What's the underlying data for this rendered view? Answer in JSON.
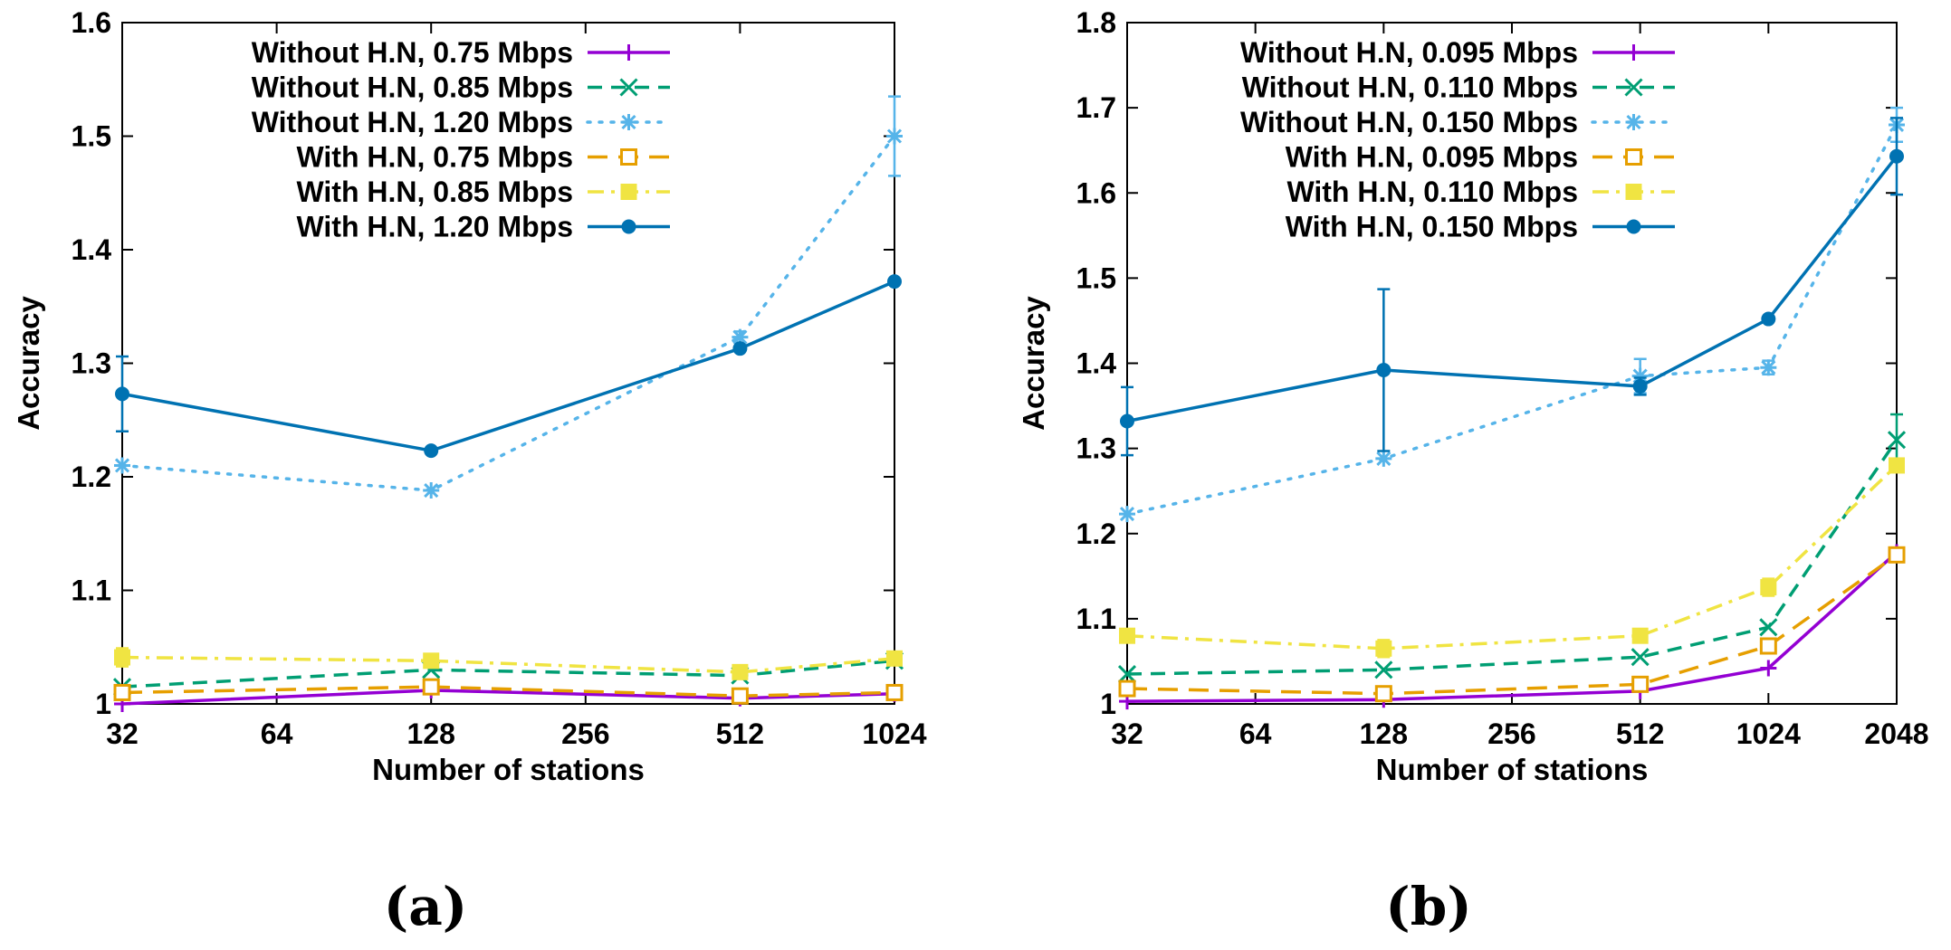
{
  "chart_data": [
    {
      "type": "line",
      "caption": "(a)",
      "xlabel": "Number of stations",
      "ylabel": "Accuracy",
      "xscale": "log2",
      "xlim": [
        32,
        1024
      ],
      "ylim": [
        1.0,
        1.6
      ],
      "xticks": [
        32,
        64,
        128,
        256,
        512,
        1024
      ],
      "xtick_labels": [
        "32",
        "64",
        "128",
        "256",
        "512",
        "1024"
      ],
      "yticks": [
        1.0,
        1.1,
        1.2,
        1.3,
        1.4,
        1.5,
        1.6
      ],
      "ytick_labels": [
        "1",
        "1.1",
        "1.2",
        "1.3",
        "1.4",
        "1.5",
        "1.6"
      ],
      "legend_position": "top-left",
      "series": [
        {
          "name": "Without H.N, 0.75 Mbps",
          "color": "#9400d3",
          "style": "solid",
          "marker": "plus",
          "x": [
            32,
            128,
            512,
            1024
          ],
          "y": [
            1.0,
            1.012,
            1.005,
            1.009
          ],
          "err": [
            0,
            0,
            0,
            0
          ]
        },
        {
          "name": "Without H.N, 0.85 Mbps",
          "color": "#009e73",
          "style": "dashed",
          "marker": "cross",
          "x": [
            32,
            128,
            512,
            1024
          ],
          "y": [
            1.015,
            1.03,
            1.025,
            1.038
          ],
          "err": [
            0,
            0,
            0,
            0
          ]
        },
        {
          "name": "Without H.N, 1.20 Mbps",
          "color": "#56b4e9",
          "style": "dotted",
          "marker": "star",
          "x": [
            32,
            128,
            512,
            1024
          ],
          "y": [
            1.21,
            1.188,
            1.323,
            1.5
          ],
          "err": [
            0,
            0,
            0.005,
            0.035
          ]
        },
        {
          "name": "With H.N, 0.75 Mbps",
          "color": "#e69f00",
          "style": "dashed-long",
          "marker": "square-open",
          "x": [
            32,
            128,
            512,
            1024
          ],
          "y": [
            1.01,
            1.015,
            1.007,
            1.01
          ],
          "err": [
            0,
            0,
            0,
            0
          ]
        },
        {
          "name": "With H.N, 0.85 Mbps",
          "color": "#f0e442",
          "style": "dashdot",
          "marker": "square-filled",
          "x": [
            32,
            128,
            512,
            1024
          ],
          "y": [
            1.041,
            1.038,
            1.028,
            1.04
          ],
          "err": [
            0.008,
            0,
            0,
            0
          ]
        },
        {
          "name": "With H.N, 1.20 Mbps",
          "color": "#0072b2",
          "style": "solid",
          "marker": "circle",
          "x": [
            32,
            128,
            512,
            1024
          ],
          "y": [
            1.273,
            1.223,
            1.313,
            1.372
          ],
          "err": [
            0.033,
            0,
            0,
            0
          ]
        }
      ]
    },
    {
      "type": "line",
      "caption": "(b)",
      "xlabel": "Number of stations",
      "ylabel": "Accuracy",
      "xscale": "log2",
      "xlim": [
        32,
        2048
      ],
      "ylim": [
        1.0,
        1.8
      ],
      "xticks": [
        32,
        64,
        128,
        256,
        512,
        1024,
        2048
      ],
      "xtick_labels": [
        "32",
        "64",
        "128",
        "256",
        "512",
        "1024",
        "2048"
      ],
      "yticks": [
        1.0,
        1.1,
        1.2,
        1.3,
        1.4,
        1.5,
        1.6,
        1.7,
        1.8
      ],
      "ytick_labels": [
        "1",
        "1.1",
        "1.2",
        "1.3",
        "1.4",
        "1.5",
        "1.6",
        "1.7",
        "1.8"
      ],
      "legend_position": "top-left",
      "series": [
        {
          "name": "Without H.N, 0.095 Mbps",
          "color": "#9400d3",
          "style": "solid",
          "marker": "plus",
          "x": [
            32,
            128,
            512,
            1024,
            2048
          ],
          "y": [
            1.003,
            1.005,
            1.015,
            1.042,
            1.178
          ],
          "err": [
            0,
            0,
            0,
            0,
            0
          ]
        },
        {
          "name": "Without H.N, 0.110 Mbps",
          "color": "#009e73",
          "style": "dashed",
          "marker": "cross",
          "x": [
            32,
            128,
            512,
            1024,
            2048
          ],
          "y": [
            1.035,
            1.04,
            1.055,
            1.09,
            1.31
          ],
          "err": [
            0,
            0,
            0,
            0,
            0.03
          ]
        },
        {
          "name": "Without H.N, 0.150 Mbps",
          "color": "#56b4e9",
          "style": "dotted",
          "marker": "star",
          "x": [
            32,
            128,
            512,
            1024,
            2048
          ],
          "y": [
            1.223,
            1.288,
            1.385,
            1.395,
            1.68
          ],
          "err": [
            0,
            0,
            0.02,
            0.008,
            0.02
          ]
        },
        {
          "name": "With H.N, 0.095 Mbps",
          "color": "#e69f00",
          "style": "dashed-long",
          "marker": "square-open",
          "x": [
            32,
            128,
            512,
            1024,
            2048
          ],
          "y": [
            1.018,
            1.012,
            1.023,
            1.068,
            1.175
          ],
          "err": [
            0,
            0,
            0,
            0,
            0
          ]
        },
        {
          "name": "With H.N, 0.110 Mbps",
          "color": "#f0e442",
          "style": "dashdot",
          "marker": "square-filled",
          "x": [
            32,
            128,
            512,
            1024,
            2048
          ],
          "y": [
            1.08,
            1.065,
            1.08,
            1.137,
            1.28
          ],
          "err": [
            0,
            0.01,
            0,
            0.01,
            0
          ]
        },
        {
          "name": "With H.N, 0.150 Mbps",
          "color": "#0072b2",
          "style": "solid",
          "marker": "circle",
          "x": [
            32,
            128,
            512,
            1024,
            2048
          ],
          "y": [
            1.332,
            1.392,
            1.373,
            1.452,
            1.643
          ],
          "err": [
            0.04,
            0.095,
            0.01,
            0,
            0.045
          ]
        }
      ]
    }
  ]
}
